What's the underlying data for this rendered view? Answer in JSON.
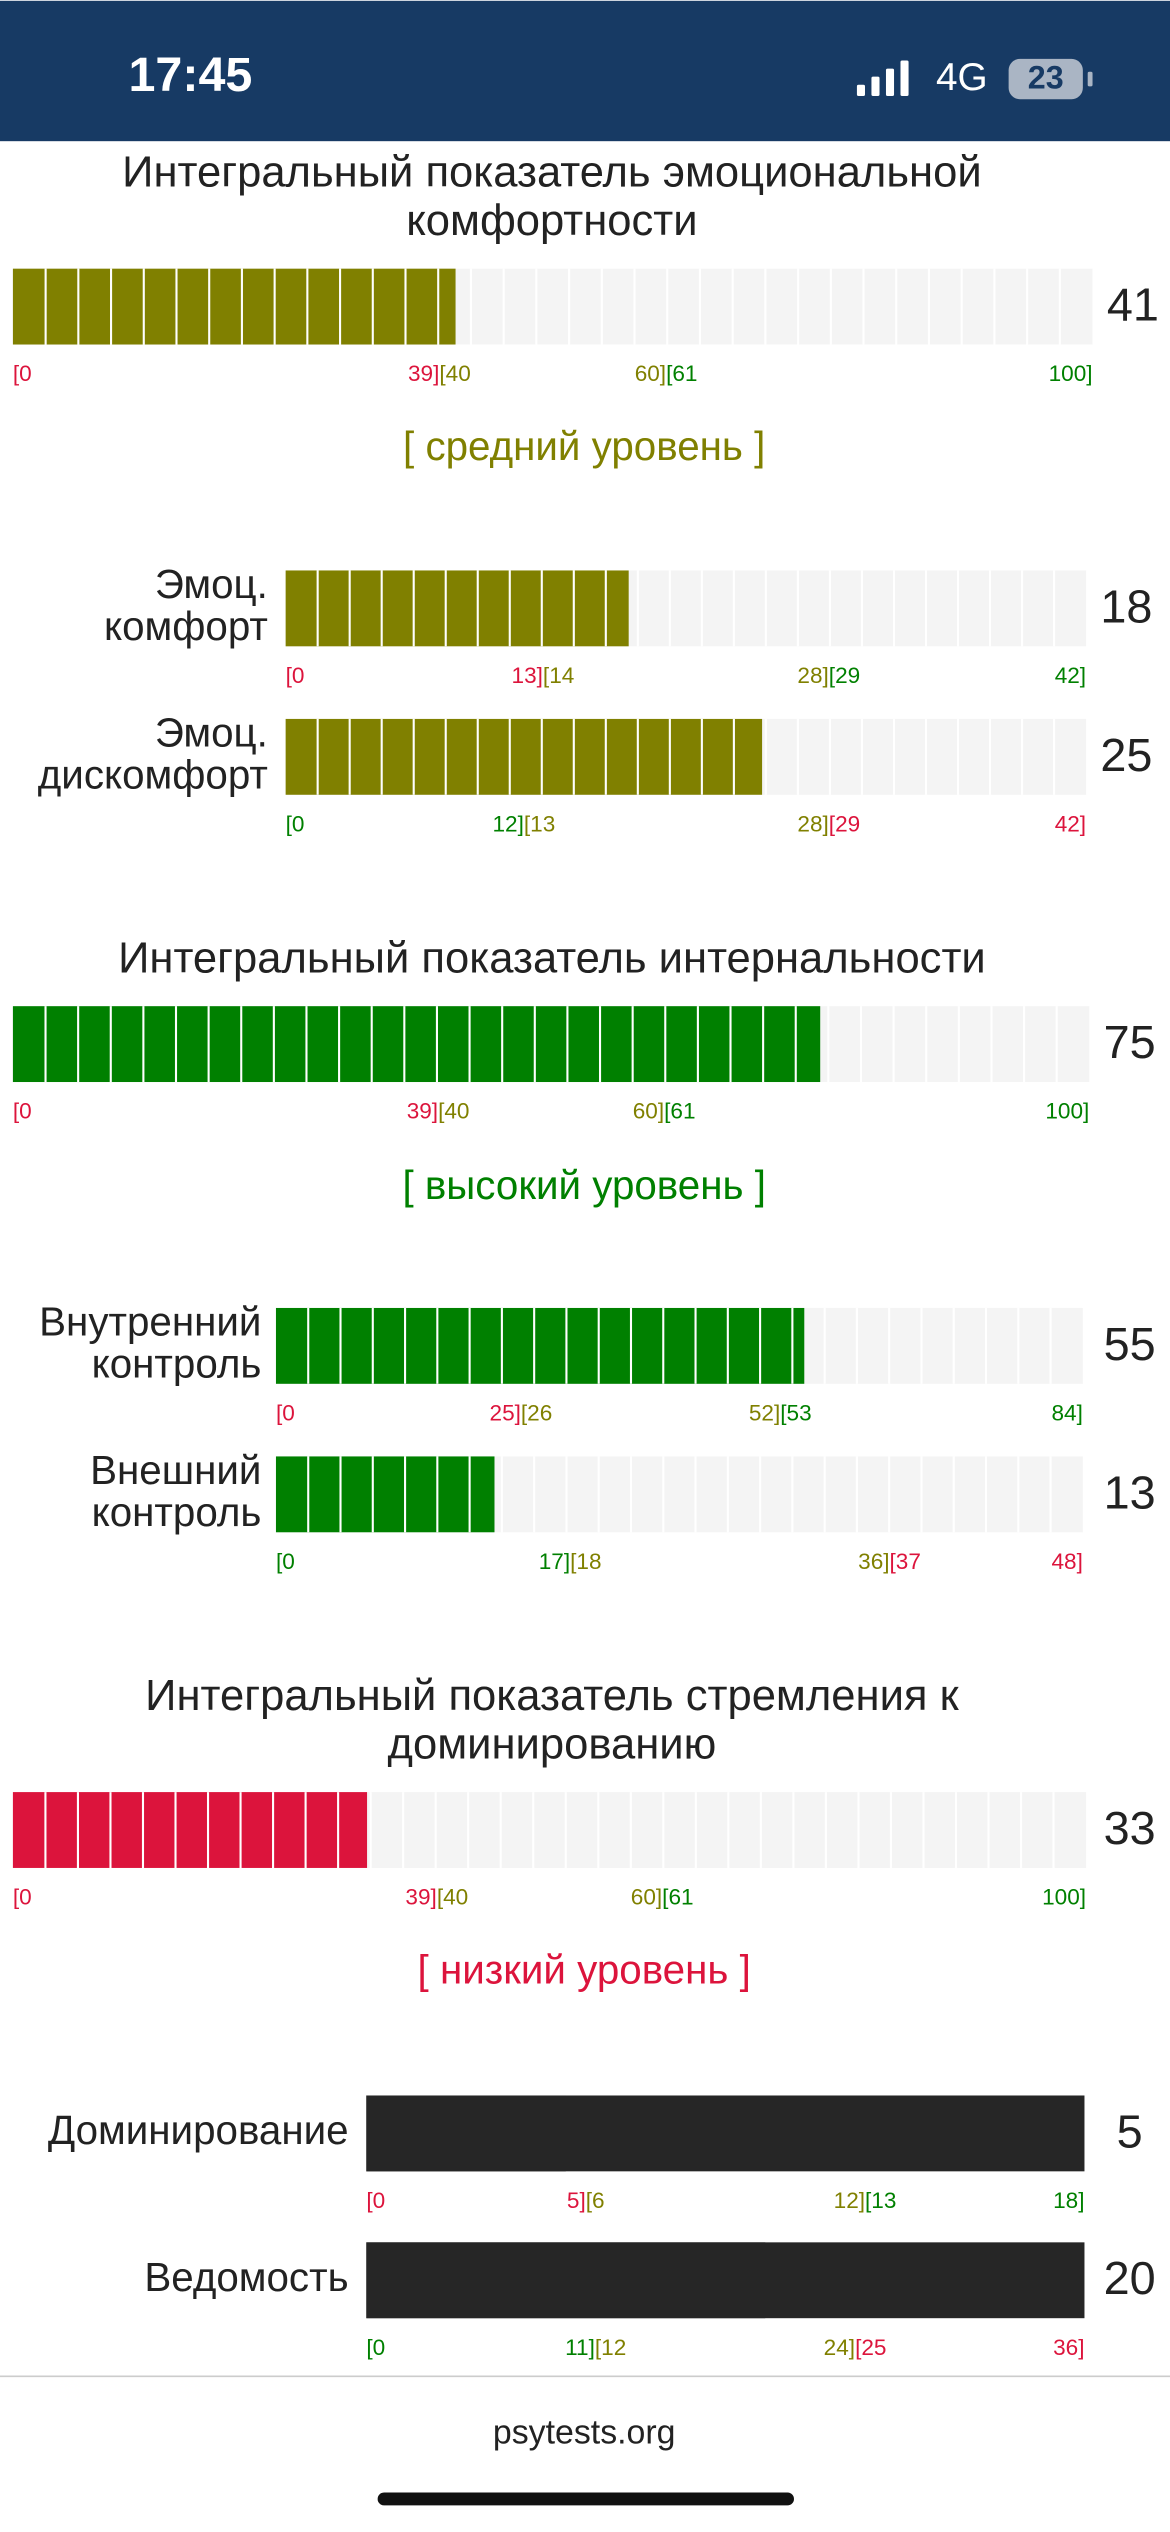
{
  "status_bar": {
    "time": "17:45",
    "network": "4G",
    "battery": "23"
  },
  "sections": [
    {
      "title": [
        "Интегральный показатель эмоциональной",
        "комфортности"
      ],
      "bar": {
        "value": 41,
        "color": "#808000",
        "ticks": [
          {
            "value": 0,
            "parts": [
              {
                "text": "[0",
                "color": "#dc143c"
              }
            ]
          },
          {
            "value": 39.5,
            "parts": [
              {
                "text": "39]",
                "color": "#dc143c"
              },
              {
                "text": "[40",
                "color": "#808000"
              }
            ]
          },
          {
            "value": 60.5,
            "parts": [
              {
                "text": "60]",
                "color": "#808000"
              },
              {
                "text": "[61",
                "color": "#008000"
              }
            ]
          },
          {
            "value": 100,
            "parts": [
              {
                "text": "100]",
                "color": "#008000"
              }
            ]
          }
        ]
      },
      "level": "[ средний уровень ]",
      "level_color": "#808000",
      "subscales": [
        {
          "label": [
            "Эмоц.",
            "комфорт"
          ],
          "value": 18,
          "color": "#808000",
          "ticks": [
            {
              "value": 0,
              "parts": [
                {
                  "text": "[0",
                  "color": "#dc143c"
                }
              ]
            },
            {
              "value": 13.5,
              "parts": [
                {
                  "text": "13]",
                  "color": "#dc143c"
                },
                {
                  "text": "[14",
                  "color": "#808000"
                }
              ]
            },
            {
              "value": 28.5,
              "parts": [
                {
                  "text": "28]",
                  "color": "#808000"
                },
                {
                  "text": "[29",
                  "color": "#008000"
                }
              ]
            },
            {
              "value": 42,
              "parts": [
                {
                  "text": "42]",
                  "color": "#008000"
                }
              ]
            }
          ]
        },
        {
          "label": [
            "Эмоц.",
            "дискомфорт"
          ],
          "value": 25,
          "color": "#808000",
          "ticks": [
            {
              "value": 0,
              "parts": [
                {
                  "text": "[0",
                  "color": "#008000"
                }
              ]
            },
            {
              "value": 12.5,
              "parts": [
                {
                  "text": "12]",
                  "color": "#008000"
                },
                {
                  "text": "[13",
                  "color": "#808000"
                }
              ]
            },
            {
              "value": 28.5,
              "parts": [
                {
                  "text": "28]",
                  "color": "#808000"
                },
                {
                  "text": "[29",
                  "color": "#dc143c"
                }
              ]
            },
            {
              "value": 42,
              "parts": [
                {
                  "text": "42]",
                  "color": "#dc143c"
                }
              ]
            }
          ]
        }
      ]
    },
    {
      "title": [
        "Интегральный показатель интернальности"
      ],
      "bar": {
        "value": 75,
        "color": "#008000",
        "ticks": [
          {
            "value": 0,
            "parts": [
              {
                "text": "[0",
                "color": "#dc143c"
              }
            ]
          },
          {
            "value": 39.5,
            "parts": [
              {
                "text": "39]",
                "color": "#dc143c"
              },
              {
                "text": "[40",
                "color": "#808000"
              }
            ]
          },
          {
            "value": 60.5,
            "parts": [
              {
                "text": "60]",
                "color": "#808000"
              },
              {
                "text": "[61",
                "color": "#008000"
              }
            ]
          },
          {
            "value": 100,
            "parts": [
              {
                "text": "100]",
                "color": "#008000"
              }
            ]
          }
        ]
      },
      "level": "[ высокий уровень ]",
      "level_color": "#008000",
      "subscales": [
        {
          "label": [
            "Внутренний",
            "контроль"
          ],
          "value": 55,
          "color": "#008000",
          "ticks": [
            {
              "value": 0,
              "parts": [
                {
                  "text": "[0",
                  "color": "#dc143c"
                }
              ]
            },
            {
              "value": 25.5,
              "parts": [
                {
                  "text": "25]",
                  "color": "#dc143c"
                },
                {
                  "text": "[26",
                  "color": "#808000"
                }
              ]
            },
            {
              "value": 52.5,
              "parts": [
                {
                  "text": "52]",
                  "color": "#808000"
                },
                {
                  "text": "[53",
                  "color": "#008000"
                }
              ]
            },
            {
              "value": 84,
              "parts": [
                {
                  "text": "84]",
                  "color": "#008000"
                }
              ]
            }
          ]
        },
        {
          "label": [
            "Внешний",
            "контроль"
          ],
          "value": 13,
          "color": "#008000",
          "ticks": [
            {
              "value": 0,
              "parts": [
                {
                  "text": "[0",
                  "color": "#008000"
                }
              ]
            },
            {
              "value": 17.5,
              "parts": [
                {
                  "text": "17]",
                  "color": "#008000"
                },
                {
                  "text": "[18",
                  "color": "#808000"
                }
              ]
            },
            {
              "value": 36.5,
              "parts": [
                {
                  "text": "36]",
                  "color": "#808000"
                },
                {
                  "text": "[37",
                  "color": "#dc143c"
                }
              ]
            },
            {
              "value": 48,
              "parts": [
                {
                  "text": "48]",
                  "color": "#dc143c"
                }
              ]
            }
          ]
        }
      ]
    },
    {
      "title": [
        "Интегральный показатель стремления к",
        "доминированию"
      ],
      "bar": {
        "value": 33,
        "color": "#dc143c",
        "ticks": [
          {
            "value": 0,
            "parts": [
              {
                "text": "[0",
                "color": "#dc143c"
              }
            ]
          },
          {
            "value": 39.5,
            "parts": [
              {
                "text": "39]",
                "color": "#dc143c"
              },
              {
                "text": "[40",
                "color": "#808000"
              }
            ]
          },
          {
            "value": 60.5,
            "parts": [
              {
                "text": "60]",
                "color": "#808000"
              },
              {
                "text": "[61",
                "color": "#008000"
              }
            ]
          },
          {
            "value": 100,
            "parts": [
              {
                "text": "100]",
                "color": "#008000"
              }
            ]
          }
        ]
      },
      "level": "[ низкий уровень ]",
      "level_color": "#dc143c",
      "subscales": [
        {
          "label": [
            "Доминирование"
          ],
          "value": 5,
          "color": "#262626",
          "track": "#262626",
          "ticks": [
            {
              "value": 0,
              "parts": [
                {
                  "text": "[0",
                  "color": "#dc143c"
                }
              ]
            },
            {
              "value": 5.5,
              "parts": [
                {
                  "text": "5]",
                  "color": "#dc143c"
                },
                {
                  "text": "[6",
                  "color": "#808000"
                }
              ]
            },
            {
              "value": 12.5,
              "parts": [
                {
                  "text": "12]",
                  "color": "#808000"
                },
                {
                  "text": "[13",
                  "color": "#008000"
                }
              ]
            },
            {
              "value": 18,
              "parts": [
                {
                  "text": "18]",
                  "color": "#008000"
                }
              ]
            }
          ]
        },
        {
          "label": [
            "Ведомость"
          ],
          "value": 20,
          "color": "#262626",
          "track": "#262626",
          "ticks": [
            {
              "value": 0,
              "parts": [
                {
                  "text": "[0",
                  "color": "#008000"
                }
              ]
            },
            {
              "value": 11.5,
              "parts": [
                {
                  "text": "11]",
                  "color": "#008000"
                },
                {
                  "text": "[12",
                  "color": "#808000"
                }
              ]
            },
            {
              "value": 24.5,
              "parts": [
                {
                  "text": "24]",
                  "color": "#808000"
                },
                {
                  "text": "[25",
                  "color": "#dc143c"
                }
              ]
            },
            {
              "value": 36,
              "parts": [
                {
                  "text": "36]",
                  "color": "#dc143c"
                }
              ]
            }
          ]
        }
      ]
    }
  ],
  "footer": "psytests.org"
}
